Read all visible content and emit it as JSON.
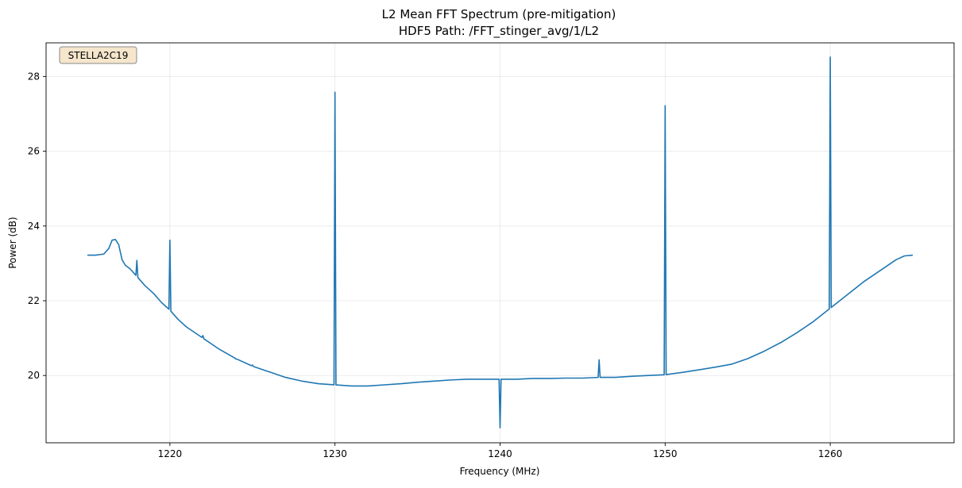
{
  "chart_data": {
    "type": "line",
    "title": "L2 Mean FFT Spectrum (pre-mitigation)",
    "subtitle": "HDF5 Path: /FFT_stinger_avg/1/L2",
    "xlabel": "Frequency (MHz)",
    "ylabel": "Power (dB)",
    "xlim": [
      1212.5,
      1267.5
    ],
    "ylim": [
      18.2,
      28.9
    ],
    "xticks": [
      1220,
      1230,
      1240,
      1250,
      1260
    ],
    "yticks": [
      20,
      22,
      24,
      26,
      28
    ],
    "grid": true,
    "line_color": "#1f77b4",
    "annotation": {
      "text": "STELLA2C19",
      "placement": "top-left",
      "background": "#f5e6cc",
      "border": "#8a8a8a"
    },
    "series": [
      {
        "baseline_points": [
          [
            1215.0,
            23.22
          ],
          [
            1215.5,
            23.22
          ],
          [
            1216.0,
            23.25
          ],
          [
            1216.3,
            23.4
          ],
          [
            1216.5,
            23.62
          ],
          [
            1216.7,
            23.64
          ],
          [
            1216.9,
            23.5
          ],
          [
            1217.1,
            23.1
          ],
          [
            1217.3,
            22.95
          ],
          [
            1217.6,
            22.85
          ],
          [
            1218.0,
            22.65
          ],
          [
            1218.5,
            22.4
          ],
          [
            1219.0,
            22.2
          ],
          [
            1219.5,
            21.95
          ],
          [
            1220.0,
            21.75
          ],
          [
            1220.5,
            21.5
          ],
          [
            1221.0,
            21.3
          ],
          [
            1222.0,
            21.0
          ],
          [
            1223.0,
            20.7
          ],
          [
            1224.0,
            20.45
          ],
          [
            1225.0,
            20.25
          ],
          [
            1226.0,
            20.1
          ],
          [
            1227.0,
            19.95
          ],
          [
            1228.0,
            19.85
          ],
          [
            1229.0,
            19.78
          ],
          [
            1230.0,
            19.75
          ],
          [
            1231.0,
            19.72
          ],
          [
            1232.0,
            19.72
          ],
          [
            1233.0,
            19.75
          ],
          [
            1234.0,
            19.78
          ],
          [
            1235.0,
            19.82
          ],
          [
            1236.0,
            19.85
          ],
          [
            1237.0,
            19.88
          ],
          [
            1238.0,
            19.9
          ],
          [
            1239.0,
            19.9
          ],
          [
            1240.0,
            19.9
          ],
          [
            1241.0,
            19.9
          ],
          [
            1242.0,
            19.92
          ],
          [
            1243.0,
            19.92
          ],
          [
            1244.0,
            19.93
          ],
          [
            1245.0,
            19.93
          ],
          [
            1246.0,
            19.95
          ],
          [
            1247.0,
            19.95
          ],
          [
            1248.0,
            19.98
          ],
          [
            1249.0,
            20.0
          ],
          [
            1250.0,
            20.02
          ],
          [
            1251.0,
            20.08
          ],
          [
            1252.0,
            20.15
          ],
          [
            1253.0,
            20.22
          ],
          [
            1254.0,
            20.3
          ],
          [
            1255.0,
            20.45
          ],
          [
            1256.0,
            20.65
          ],
          [
            1257.0,
            20.88
          ],
          [
            1258.0,
            21.15
          ],
          [
            1259.0,
            21.45
          ],
          [
            1260.0,
            21.8
          ],
          [
            1261.0,
            22.15
          ],
          [
            1262.0,
            22.5
          ],
          [
            1263.0,
            22.8
          ],
          [
            1264.0,
            23.1
          ],
          [
            1264.5,
            23.2
          ],
          [
            1265.0,
            23.22
          ]
        ],
        "spikes": [
          {
            "x": 1218.0,
            "y": 23.08
          },
          {
            "x": 1220.0,
            "y": 23.62
          },
          {
            "x": 1222.0,
            "y": 21.07
          },
          {
            "x": 1224.0,
            "y": 20.44
          },
          {
            "x": 1225.0,
            "y": 20.28
          },
          {
            "x": 1226.0,
            "y": 20.1
          },
          {
            "x": 1230.0,
            "y": 27.58
          },
          {
            "x": 1240.0,
            "y": 18.6
          },
          {
            "x": 1246.0,
            "y": 20.42
          },
          {
            "x": 1250.0,
            "y": 27.22
          },
          {
            "x": 1260.0,
            "y": 28.52
          }
        ]
      }
    ]
  }
}
